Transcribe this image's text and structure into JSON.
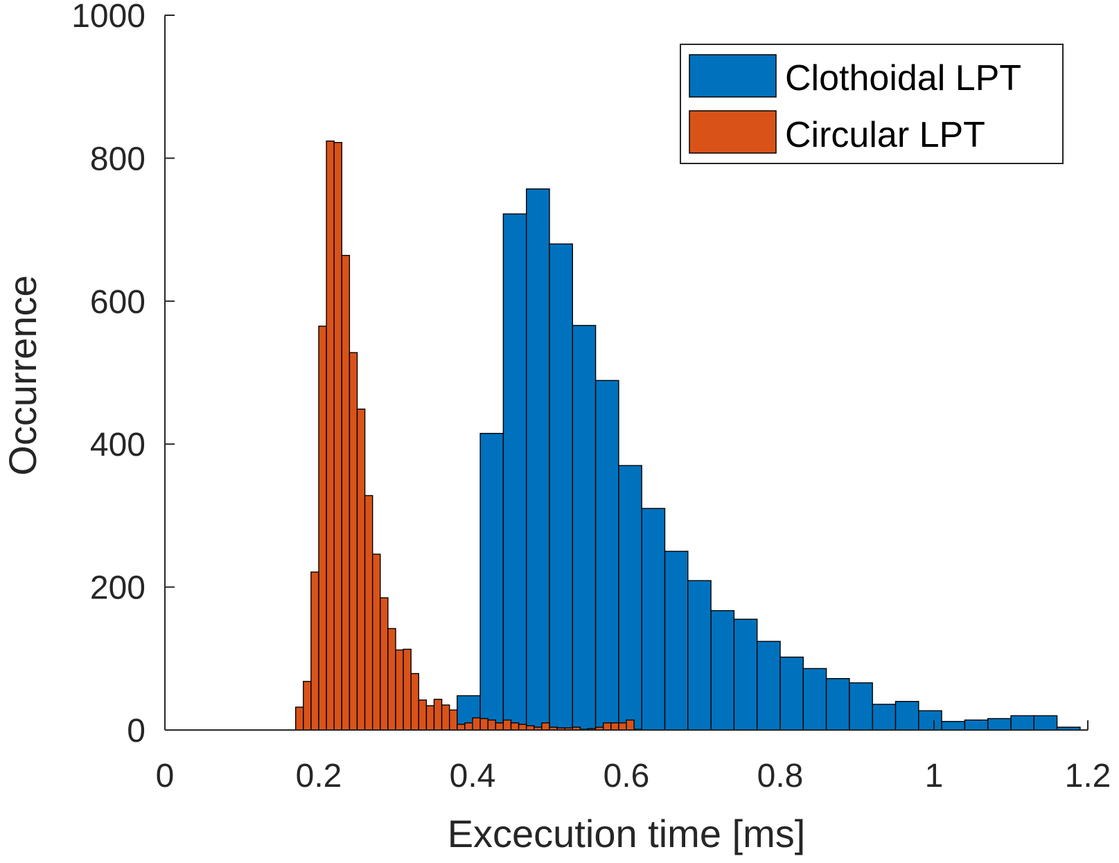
{
  "chart_data": {
    "type": "bar",
    "title": "",
    "xlabel": "Excecution time [ms]",
    "ylabel": "Occurrence",
    "xlim": [
      0,
      1.2
    ],
    "ylim": [
      0,
      1000
    ],
    "xticks": [
      0,
      0.2,
      0.4,
      0.6,
      0.8,
      1,
      1.2
    ],
    "xtick_labels": [
      "0",
      "0.2",
      "0.4",
      "0.6",
      "0.8",
      "1",
      "1.2"
    ],
    "yticks": [
      0,
      200,
      400,
      600,
      800,
      1000
    ],
    "ytick_labels": [
      "0",
      "200",
      "400",
      "600",
      "800",
      "1000"
    ],
    "grid": false,
    "legend_position": "top-right",
    "series": [
      {
        "name": "Clothoidal LPT",
        "color": "#0072BD",
        "bin_width": 0.03,
        "bin_start": 0.35,
        "values": [
          0,
          48,
          415,
          722,
          757,
          680,
          566,
          489,
          370,
          310,
          250,
          209,
          167,
          155,
          124,
          102,
          86,
          72,
          66,
          36,
          40,
          27,
          12,
          14,
          16,
          20,
          20,
          4
        ]
      },
      {
        "name": "Circular LPT",
        "color": "#D95319",
        "bin_width": 0.01,
        "bin_start": 0.17,
        "values": [
          32,
          68,
          221,
          565,
          824,
          822,
          664,
          528,
          449,
          328,
          246,
          185,
          142,
          112,
          113,
          79,
          42,
          34,
          43,
          35,
          28,
          8,
          10,
          17,
          16,
          14,
          10,
          14,
          10,
          8,
          6,
          4,
          10,
          4,
          3,
          3,
          4,
          1,
          2,
          4,
          10,
          10,
          10,
          14,
          1
        ]
      }
    ]
  }
}
